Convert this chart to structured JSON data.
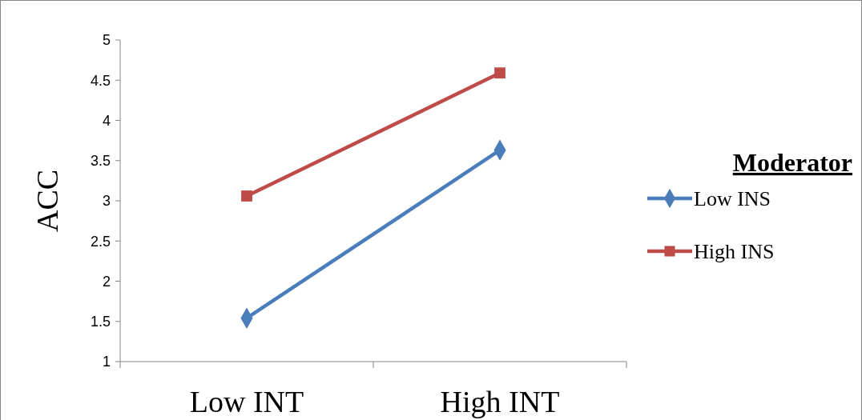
{
  "chart_data": {
    "type": "line",
    "ylabel": "ACC",
    "legend_title": "Moderator",
    "legend": "right",
    "categories": [
      "Low INT",
      "High INT"
    ],
    "series": [
      {
        "name": "Low INS",
        "color": "#4a7ebb",
        "marker": "diamond",
        "values": [
          1.54,
          3.63
        ]
      },
      {
        "name": "High INS",
        "color": "#be4b48",
        "marker": "square",
        "values": [
          3.06,
          4.59
        ]
      }
    ],
    "ylim": [
      1,
      5
    ],
    "yticks": [
      1,
      1.5,
      2,
      2.5,
      3,
      3.5,
      4,
      4.5,
      5
    ],
    "grid": false
  }
}
